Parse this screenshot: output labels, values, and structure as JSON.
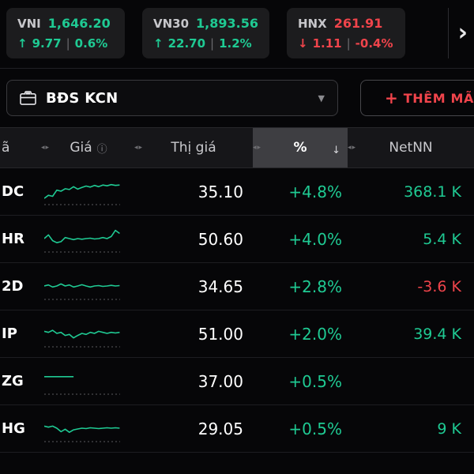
{
  "colors": {
    "green": "#1FCA93",
    "red": "#F0444B",
    "up": "#1FCA93",
    "down": "#F0444B",
    "spark_baseline": "#5a5a5e"
  },
  "indices": [
    {
      "name": "VNI",
      "value": "1,646.20",
      "arrow": "↑",
      "change": "9.77",
      "sep": "|",
      "pct": "0.6%",
      "direction": "up"
    },
    {
      "name": "VN30",
      "value": "1,893.56",
      "arrow": "↑",
      "change": "22.70",
      "sep": "|",
      "pct": "1.2%",
      "direction": "up"
    },
    {
      "name": "HNX",
      "value": "261.91",
      "arrow": "↓",
      "change": "1.11",
      "sep": "|",
      "pct": "-0.4%",
      "direction": "down"
    }
  ],
  "indices_more": "›",
  "watchlist": {
    "name": "BĐS KCN",
    "caret": "▼",
    "add_plus": "+",
    "add_label": "THÊM MÃ"
  },
  "table": {
    "headers": {
      "symbol": "ã",
      "price": "Giá",
      "info_icon": "ⓘ",
      "market_price": "Thị giá",
      "percent": "%",
      "net": "NetNN",
      "sort_handle": "◂▸",
      "sort_desc": "↓"
    },
    "rows": [
      {
        "symbol": "DC",
        "market_price": "35.10",
        "pct": "+4.8%",
        "pct_color": "green",
        "net": "368.1 K",
        "net_color": "green",
        "spark": [
          0.15,
          0.3,
          0.25,
          0.55,
          0.5,
          0.62,
          0.58,
          0.72,
          0.6,
          0.68,
          0.75,
          0.7,
          0.78,
          0.72,
          0.8,
          0.76,
          0.82,
          0.78,
          0.8
        ]
      },
      {
        "symbol": "HR",
        "market_price": "50.60",
        "pct": "+4.0%",
        "pct_color": "green",
        "net": "5.4 K",
        "net_color": "green",
        "spark": [
          0.5,
          0.68,
          0.4,
          0.3,
          0.35,
          0.55,
          0.5,
          0.45,
          0.5,
          0.47,
          0.5,
          0.52,
          0.48,
          0.5,
          0.55,
          0.5,
          0.6,
          0.9,
          0.75
        ]
      },
      {
        "symbol": "2D",
        "market_price": "34.65",
        "pct": "+2.8%",
        "pct_color": "green",
        "net": "-3.6 K",
        "net_color": "red",
        "spark": [
          0.5,
          0.55,
          0.45,
          0.5,
          0.6,
          0.5,
          0.55,
          0.45,
          0.5,
          0.56,
          0.5,
          0.45,
          0.5,
          0.52,
          0.48,
          0.5,
          0.53,
          0.5,
          0.52
        ]
      },
      {
        "symbol": "IP",
        "market_price": "51.00",
        "pct": "+2.0%",
        "pct_color": "green",
        "net": "39.4 K",
        "net_color": "green",
        "spark": [
          0.6,
          0.55,
          0.65,
          0.5,
          0.55,
          0.4,
          0.45,
          0.28,
          0.4,
          0.5,
          0.45,
          0.55,
          0.5,
          0.6,
          0.55,
          0.5,
          0.55,
          0.52,
          0.55
        ]
      },
      {
        "symbol": "ZG",
        "market_price": "37.00",
        "pct": "+0.5%",
        "pct_color": "green",
        "net": "",
        "net_color": "",
        "spark": [
          0.7,
          0.7,
          0.7,
          0.7,
          0.7,
          0.7,
          0.7,
          0.7
        ]
      },
      {
        "symbol": "HG",
        "market_price": "29.05",
        "pct": "+0.5%",
        "pct_color": "green",
        "net": "9 K",
        "net_color": "green",
        "spark": [
          0.6,
          0.55,
          0.6,
          0.5,
          0.33,
          0.45,
          0.3,
          0.42,
          0.46,
          0.5,
          0.48,
          0.52,
          0.5,
          0.48,
          0.5,
          0.52,
          0.5,
          0.52,
          0.5
        ]
      }
    ]
  }
}
